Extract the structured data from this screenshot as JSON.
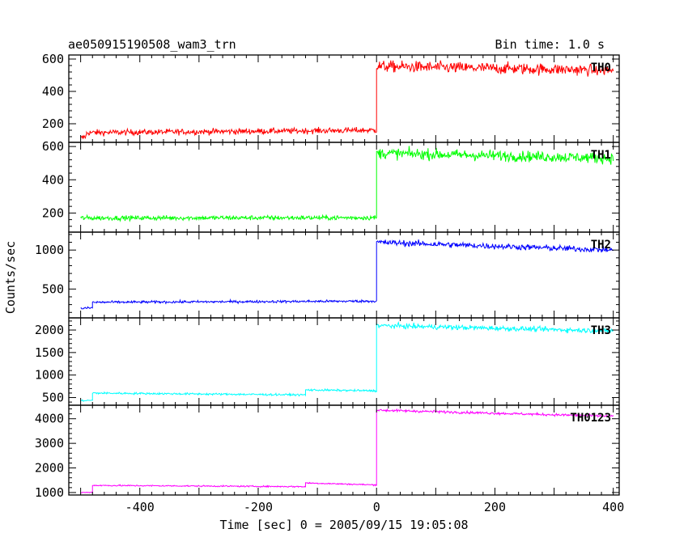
{
  "header": {
    "left_title": "ae050915190508_wam3_trn",
    "right_title": "Bin time: 1.0 s"
  },
  "chart_data": {
    "type": "line",
    "xlabel": "Time [sec] 0 = 2005/09/15 19:05:08",
    "ylabel": "Counts/sec",
    "xlim": [
      -520,
      410
    ],
    "xticks": [
      -400,
      -200,
      0,
      200,
      400
    ],
    "x_start": -500,
    "x_end": 400,
    "bin_time": 1.0,
    "panels": [
      {
        "name": "TH0",
        "color": "#ff0000",
        "ylim": [
          85,
          625
        ],
        "yticks": [
          200,
          400,
          600
        ],
        "segments": [
          {
            "x0": -500,
            "x1": -490,
            "mean": 110,
            "end_mean": 125,
            "noise": 18
          },
          {
            "x0": -490,
            "x1": 0,
            "mean": 145,
            "end_mean": 160,
            "noise": 18
          },
          {
            "x0": 0,
            "x1": 400,
            "mean": 555,
            "end_mean": 530,
            "noise": 35
          }
        ]
      },
      {
        "name": "TH1",
        "color": "#00ff00",
        "ylim": [
          85,
          625
        ],
        "yticks": [
          200,
          400,
          600
        ],
        "segments": [
          {
            "x0": -500,
            "x1": 0,
            "mean": 170,
            "end_mean": 172,
            "noise": 14
          },
          {
            "x0": 0,
            "x1": 400,
            "mean": 560,
            "end_mean": 530,
            "noise": 32
          }
        ]
      },
      {
        "name": "TH2",
        "color": "#0000ff",
        "ylim": [
          130,
          1230
        ],
        "yticks": [
          500,
          1000
        ],
        "segments": [
          {
            "x0": -500,
            "x1": -480,
            "mean": 250,
            "end_mean": 260,
            "noise": 15
          },
          {
            "x0": -480,
            "x1": 0,
            "mean": 330,
            "end_mean": 345,
            "noise": 16
          },
          {
            "x0": 0,
            "x1": 400,
            "mean": 1100,
            "end_mean": 1000,
            "noise": 38
          }
        ]
      },
      {
        "name": "TH3",
        "color": "#00ffff",
        "ylim": [
          330,
          2270
        ],
        "yticks": [
          500,
          1000,
          1500,
          2000
        ],
        "segments": [
          {
            "x0": -500,
            "x1": -480,
            "mean": 430,
            "end_mean": 440,
            "noise": 15
          },
          {
            "x0": -480,
            "x1": -120,
            "mean": 600,
            "end_mean": 560,
            "noise": 22
          },
          {
            "x0": -120,
            "x1": 0,
            "mean": 670,
            "end_mean": 650,
            "noise": 22
          },
          {
            "x0": 0,
            "x1": 400,
            "mean": 2100,
            "end_mean": 1980,
            "noise": 55
          }
        ]
      },
      {
        "name": "TH0123",
        "color": "#ff00ff",
        "ylim": [
          900,
          4550
        ],
        "yticks": [
          1000,
          2000,
          3000,
          4000
        ],
        "segments": [
          {
            "x0": -500,
            "x1": -480,
            "mean": 1000,
            "end_mean": 1010,
            "noise": 20
          },
          {
            "x0": -480,
            "x1": -120,
            "mean": 1290,
            "end_mean": 1240,
            "noise": 28
          },
          {
            "x0": -120,
            "x1": 0,
            "mean": 1390,
            "end_mean": 1310,
            "noise": 28
          },
          {
            "x0": 0,
            "x1": 400,
            "mean": 4350,
            "end_mean": 4100,
            "noise": 50
          }
        ]
      }
    ]
  }
}
